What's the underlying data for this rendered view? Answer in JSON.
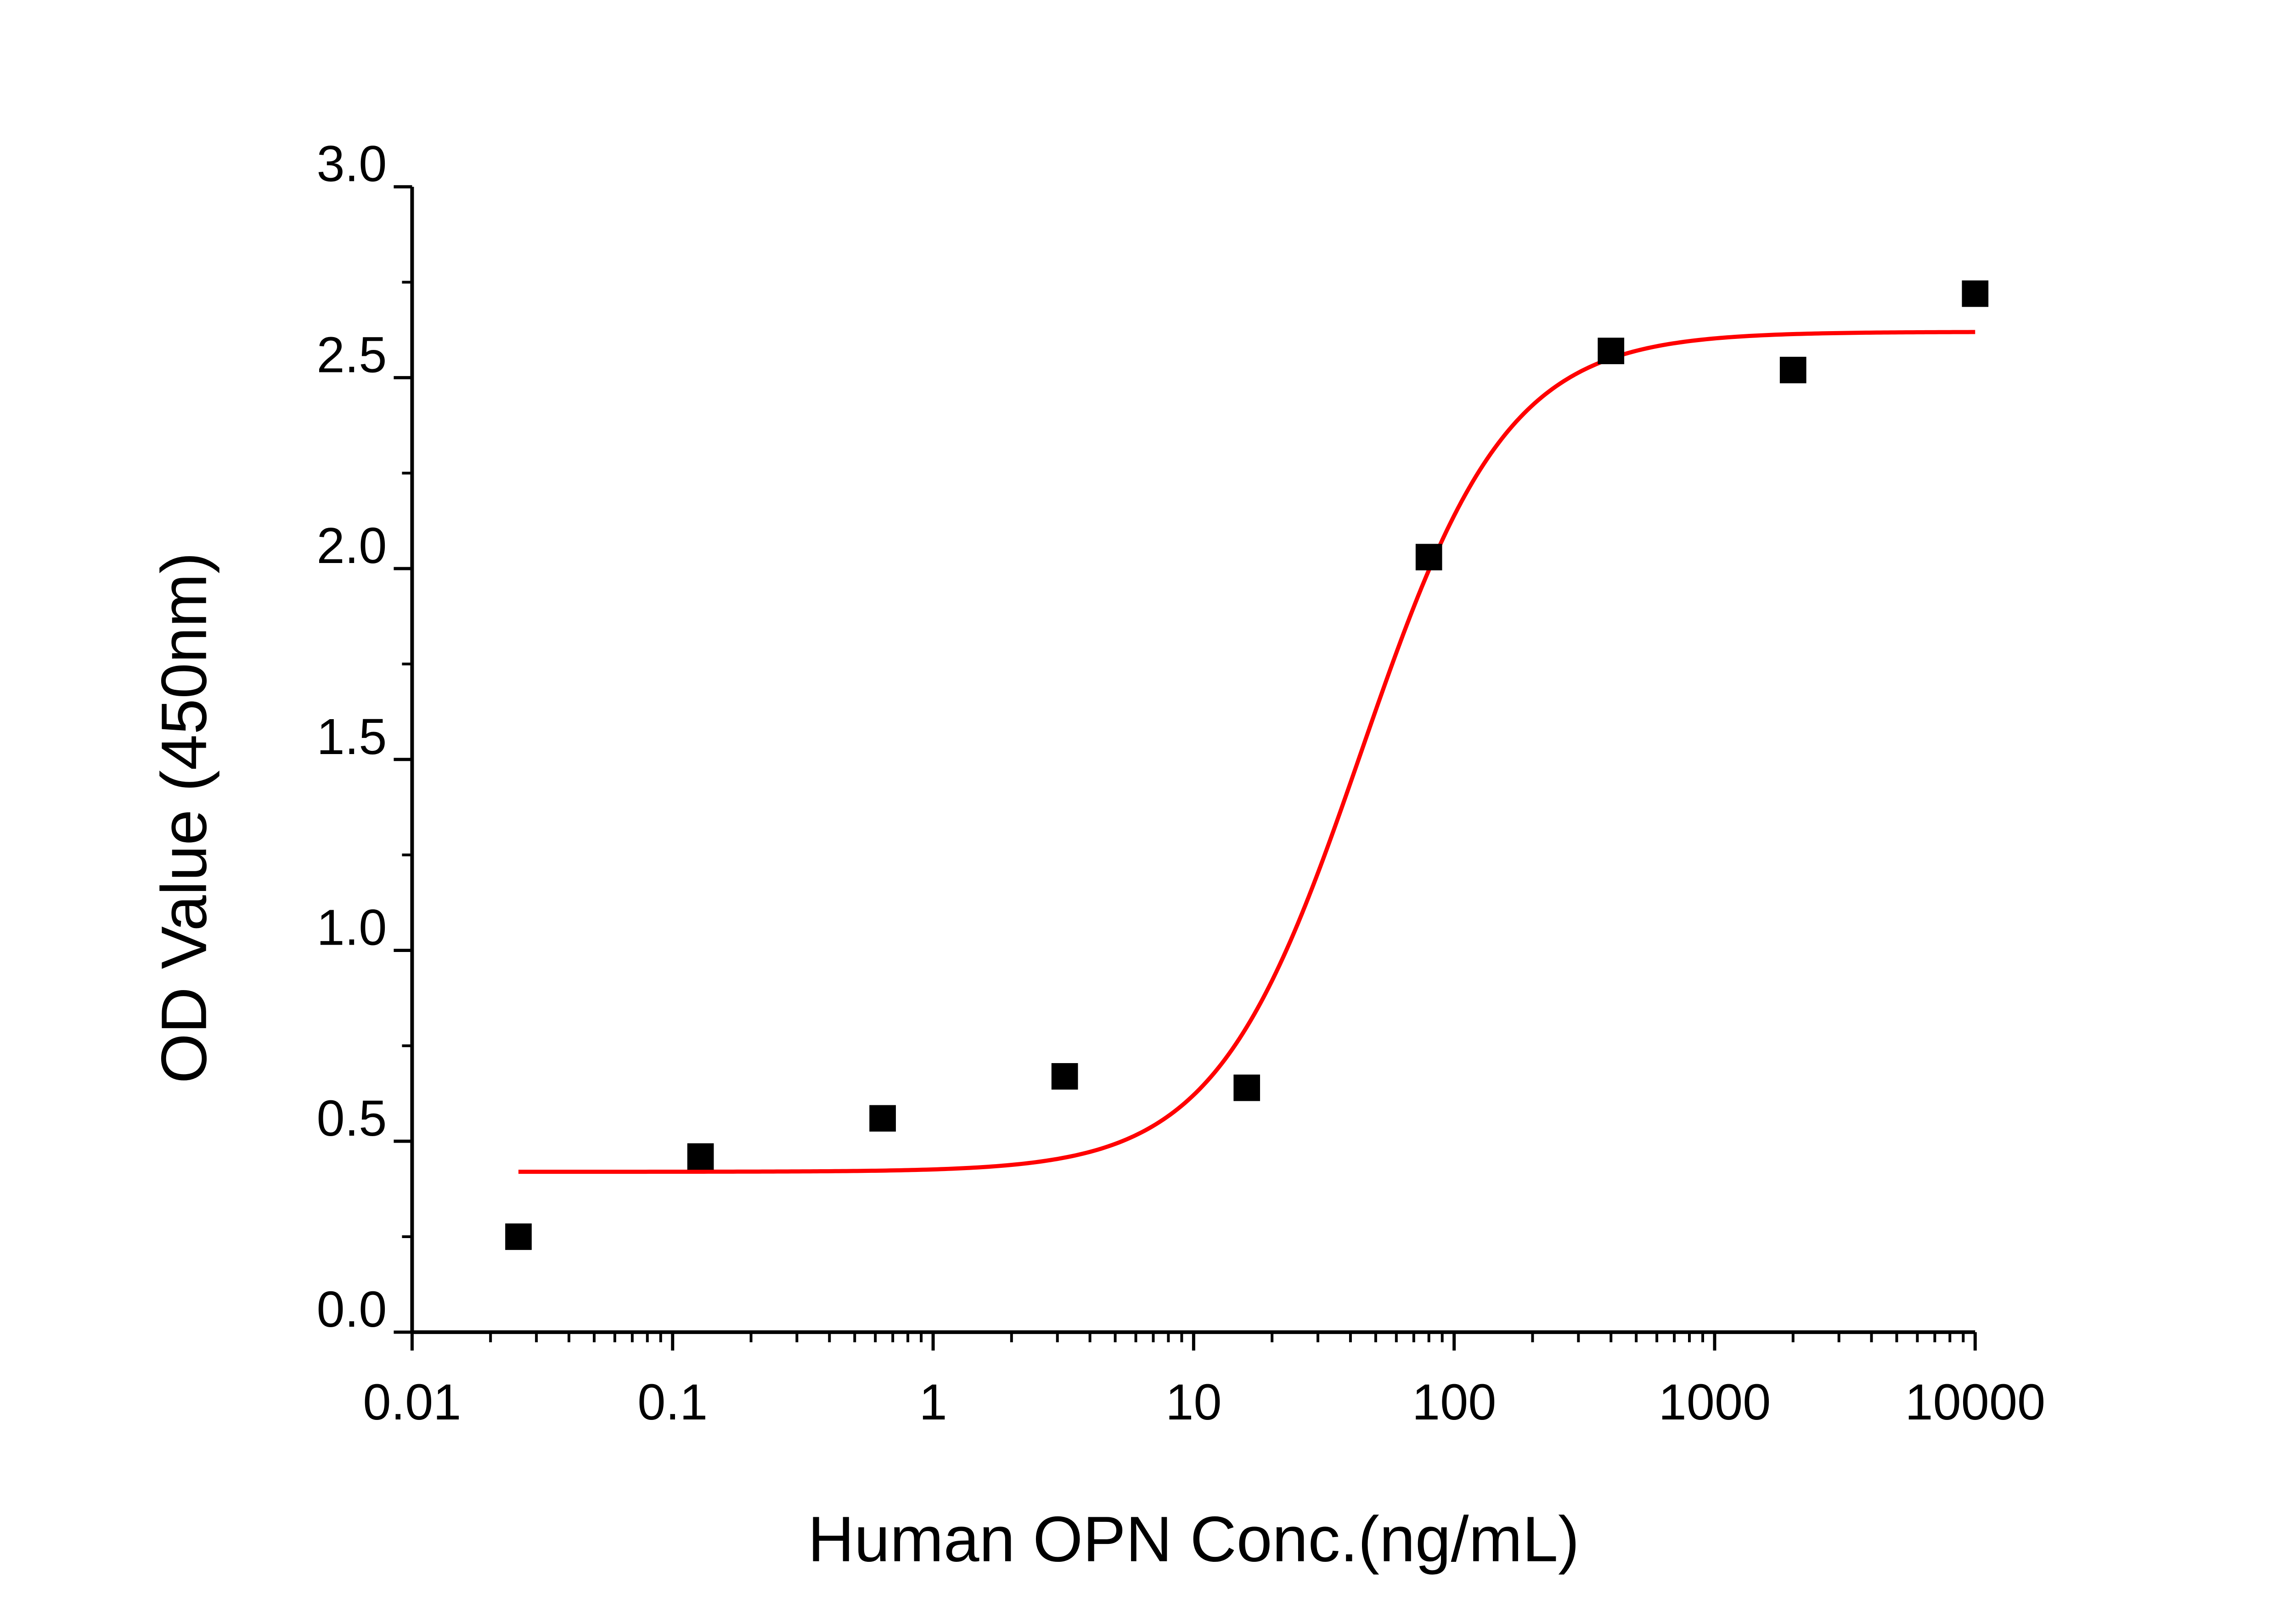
{
  "chart_data": {
    "type": "scatter",
    "title": "",
    "xlabel": "Human OPN Conc.(ng/mL)",
    "ylabel": "OD Value (450nm)",
    "x_scale": "log",
    "xlim": [
      0.01,
      10000
    ],
    "ylim": [
      0,
      3.0
    ],
    "x_ticks": [
      {
        "value": 0.01,
        "label": "0.01"
      },
      {
        "value": 0.1,
        "label": "0.1"
      },
      {
        "value": 1,
        "label": "1"
      },
      {
        "value": 10,
        "label": "10"
      },
      {
        "value": 100,
        "label": "100"
      },
      {
        "value": 1000,
        "label": "1000"
      },
      {
        "value": 10000,
        "label": "10000"
      }
    ],
    "y_ticks": [
      {
        "value": 0.0,
        "label": "0.0"
      },
      {
        "value": 0.5,
        "label": "0.5"
      },
      {
        "value": 1.0,
        "label": "1.0"
      },
      {
        "value": 1.5,
        "label": "1.5"
      },
      {
        "value": 2.0,
        "label": "2.0"
      },
      {
        "value": 2.5,
        "label": "2.5"
      },
      {
        "value": 3.0,
        "label": "3.0"
      }
    ],
    "grid": false,
    "legend": "none",
    "series": [
      {
        "type": "scatter",
        "marker": "square",
        "color": "#000000",
        "x": [
          0.0256,
          0.128,
          0.64,
          3.2,
          16,
          80,
          400,
          2000,
          10000
        ],
        "y": [
          0.25,
          0.46,
          0.56,
          0.67,
          0.64,
          2.03,
          2.57,
          2.52,
          2.72
        ]
      },
      {
        "type": "line",
        "fit": "four-parameter logistic",
        "color": "#ff0000",
        "bottom": 0.42,
        "top": 2.62,
        "ec50": 44,
        "hill": 1.55,
        "x_range": [
          0.0256,
          10000
        ]
      }
    ]
  }
}
